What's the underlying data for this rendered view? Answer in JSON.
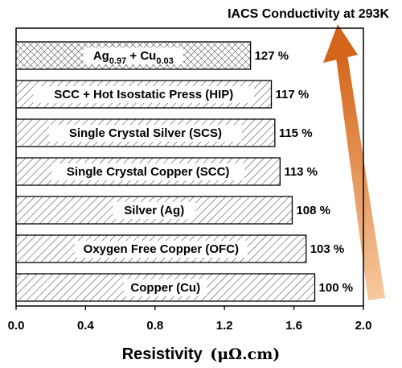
{
  "chart_data": {
    "type": "bar",
    "orientation": "horizontal",
    "title": "IACS Conductivity at 293K",
    "xlabel": "Resistivity",
    "xlabel_unit": "(μΩ.cm)",
    "xlim": [
      0.0,
      2.0
    ],
    "xticks": [
      "0.0",
      "0.4",
      "0.8",
      "1.2",
      "1.6",
      "2.0"
    ],
    "categories": [
      "Ag0.97 + Cu0.03",
      "SCC + Hot Isostatic Press (HIP)",
      "Single Crystal Silver (SCS)",
      "Single Crystal Copper (SCC)",
      "Silver (Ag)",
      "Oxygen Free Copper (OFC)",
      "Copper (Cu)"
    ],
    "values": [
      1.35,
      1.47,
      1.49,
      1.52,
      1.59,
      1.67,
      1.72
    ],
    "value_labels": [
      "127 %",
      "117 %",
      "115 %",
      "113 %",
      "108 %",
      "103 %",
      "100 %"
    ],
    "label_parts": {
      "alloy_ag": "Ag",
      "alloy_ag_sub": "0.97",
      "alloy_plus": " + Cu",
      "alloy_cu_sub": "0.03"
    },
    "patterns": [
      "crosshatch",
      "hatch",
      "hatch",
      "hatch",
      "hatch",
      "hatch",
      "hatch"
    ],
    "arrow_color_light": "#f7c9a0",
    "arrow_color_dark": "#d4651a",
    "grid": false
  }
}
